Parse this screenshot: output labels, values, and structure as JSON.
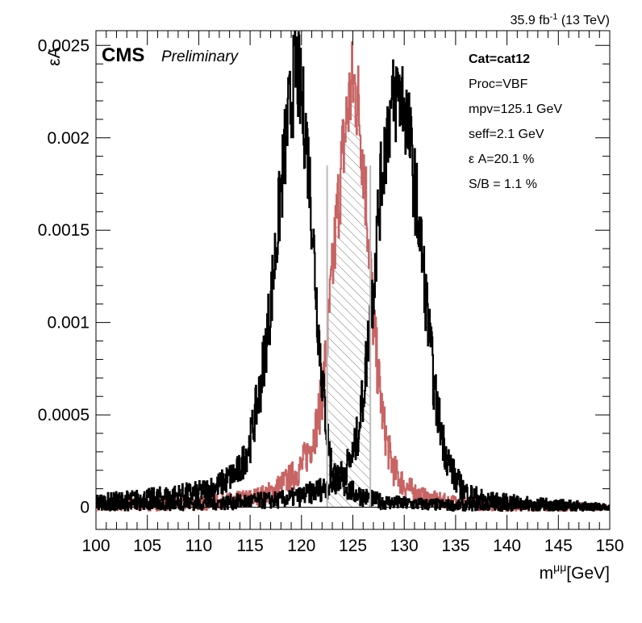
{
  "chart_data": {
    "type": "line",
    "header_right": "35.9 fb",
    "header_right_sup": "-1",
    "header_right_tail": " (13 TeV)",
    "cms_label": "CMS",
    "preliminary_label": "Preliminary",
    "ylabel": "εA",
    "xlabel": "m",
    "xlabel_sup": "μμ",
    "xlabel_unit": "[GeV]",
    "xlim": [
      100,
      150
    ],
    "ylim": [
      -0.00012,
      0.00258
    ],
    "x_ticks": [
      {
        "value": 100,
        "label": "100"
      },
      {
        "value": 105,
        "label": "105"
      },
      {
        "value": 110,
        "label": "110"
      },
      {
        "value": 115,
        "label": "115"
      },
      {
        "value": 120,
        "label": "120"
      },
      {
        "value": 125,
        "label": "125"
      },
      {
        "value": 130,
        "label": "130"
      },
      {
        "value": 135,
        "label": "135"
      },
      {
        "value": 140,
        "label": "140"
      },
      {
        "value": 145,
        "label": "145"
      },
      {
        "value": 150,
        "label": "150"
      }
    ],
    "y_ticks": [
      {
        "value": 0,
        "label": "0"
      },
      {
        "value": 0.0005,
        "label": "0.0005"
      },
      {
        "value": 0.001,
        "label": "0.001"
      },
      {
        "value": 0.0015,
        "label": "0.0015"
      },
      {
        "value": 0.002,
        "label": "0.002"
      },
      {
        "value": 0.0025,
        "label": "0.0025"
      }
    ],
    "info": [
      {
        "key": "cat",
        "text": "Cat=cat12",
        "bold": true
      },
      {
        "key": "proc",
        "text": "Proc=VBF",
        "bold": false
      },
      {
        "key": "mpv",
        "text": "mpv=125.1 GeV",
        "bold": false
      },
      {
        "key": "seff",
        "text": "seff=2.1 GeV",
        "bold": false
      },
      {
        "key": "eff",
        "text": "ε A=20.1 %",
        "bold": false
      },
      {
        "key": "sb",
        "text": "S/B = 1.1 %",
        "bold": false
      }
    ],
    "seff_window": {
      "low": 122.5,
      "high": 126.7,
      "line_top": 0.00185
    },
    "series": [
      {
        "key": "signal",
        "color": "#c86464",
        "hatched": true,
        "x": [
          100,
          110,
          114,
          116,
          117,
          118,
          119,
          120,
          121,
          121.5,
          122,
          122.5,
          123,
          123.5,
          124,
          124.5,
          125,
          125.5,
          126,
          126.5,
          127,
          127.5,
          128,
          128.5,
          129,
          130,
          131,
          132,
          134,
          140,
          150
        ],
        "y": [
          1e-05,
          2e-05,
          4e-05,
          6e-05,
          8e-05,
          0.00012,
          0.00016,
          0.00022,
          0.00035,
          0.00045,
          0.0006,
          0.0009,
          0.00125,
          0.0016,
          0.0019,
          0.00215,
          0.0023,
          0.0022,
          0.0019,
          0.0015,
          0.001,
          0.0007,
          0.00045,
          0.0003,
          0.0002,
          0.00012,
          8e-05,
          5e-05,
          3e-05,
          1e-05,
          0
        ]
      },
      {
        "key": "shifted-left",
        "color": "#000000",
        "hatched": false,
        "x": [
          100,
          105,
          110,
          112,
          114,
          115,
          116,
          117,
          117.5,
          118,
          118.5,
          119,
          119.5,
          120,
          120.5,
          121,
          121.5,
          122,
          122.5,
          123,
          124,
          125,
          126,
          127,
          128,
          130,
          135,
          140,
          150
        ],
        "y": [
          3e-05,
          5e-05,
          8e-05,
          0.00012,
          0.0002,
          0.00035,
          0.00065,
          0.0011,
          0.0014,
          0.0017,
          0.002,
          0.0022,
          0.0024,
          0.0022,
          0.002,
          0.0016,
          0.0011,
          0.0007,
          0.0004,
          0.0002,
          0.00012,
          8e-05,
          6e-05,
          4e-05,
          3e-05,
          2e-05,
          1e-05,
          1e-05,
          0
        ]
      },
      {
        "key": "shifted-right",
        "color": "#000000",
        "hatched": false,
        "x": [
          100,
          110,
          118,
          120,
          122,
          123,
          124,
          125,
          125.5,
          126,
          126.5,
          127,
          127.5,
          128,
          128.5,
          129,
          129.5,
          130,
          130.5,
          131,
          131.5,
          132,
          132.5,
          133,
          134,
          135,
          136,
          138,
          142,
          150
        ],
        "y": [
          1e-05,
          2e-05,
          4e-05,
          6e-05,
          0.0001,
          0.00013,
          0.00018,
          0.00028,
          0.0004,
          0.0006,
          0.0009,
          0.0012,
          0.0016,
          0.0019,
          0.0021,
          0.0022,
          0.00225,
          0.0022,
          0.002,
          0.00175,
          0.0015,
          0.0012,
          0.0009,
          0.0006,
          0.0003,
          0.00015,
          8e-05,
          4e-05,
          2e-05,
          0
        ]
      }
    ]
  }
}
